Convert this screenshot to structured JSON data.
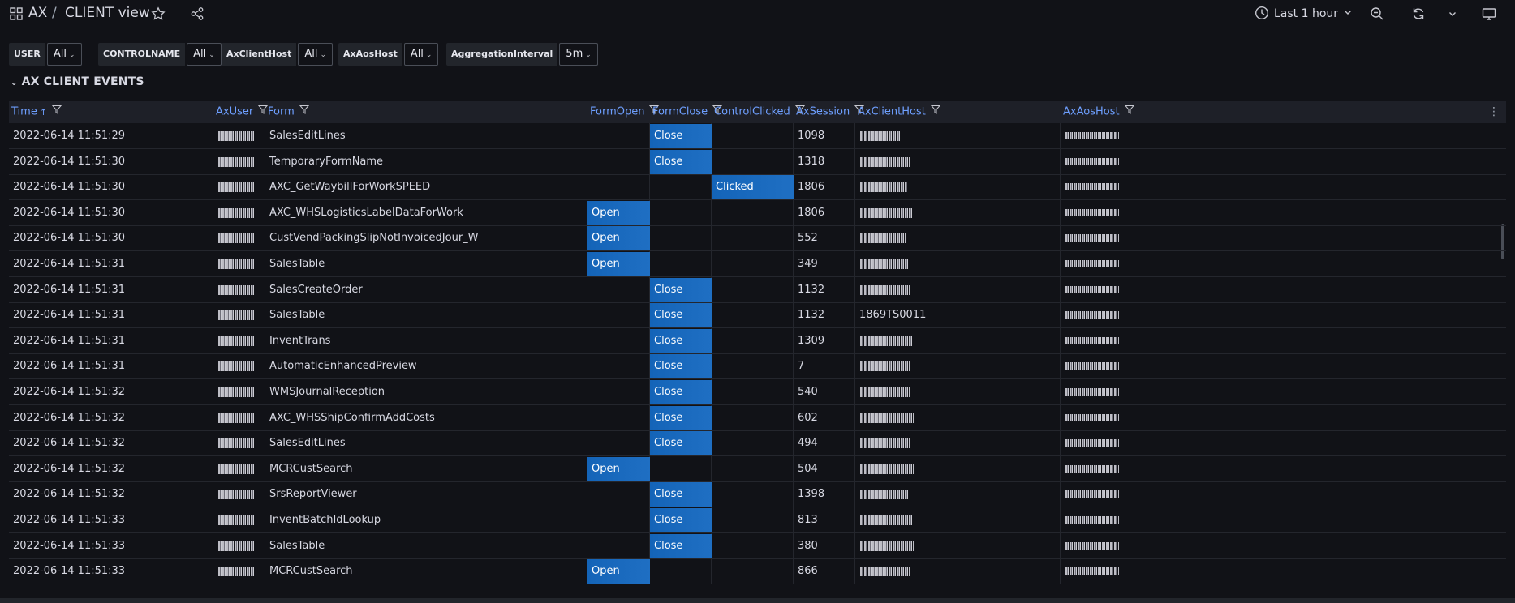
{
  "breadcrumb": {
    "folder": "AX",
    "separator": "/",
    "title": "CLIENT view"
  },
  "toolbar": {
    "time_range": "Last 1 hour"
  },
  "variables": [
    {
      "label": "USER",
      "value": "All"
    },
    {
      "label": "CONTROLNAME",
      "value": "All"
    },
    {
      "label": "AxClientHost",
      "value": "All"
    },
    {
      "label": "AxAosHost",
      "value": "All"
    },
    {
      "label": "AggregationInterval",
      "value": "5m"
    }
  ],
  "panel": {
    "title": "AX CLIENT EVENTS"
  },
  "table": {
    "columns": [
      "Time",
      "AxUser",
      "Form",
      "FormOpen",
      "FormClose",
      "ControlClicked",
      "AxSession",
      "AxClientHost",
      "AxAosHost"
    ],
    "sort_indicator": "↑",
    "rows": [
      {
        "time": "2022-06-14 11:51:29",
        "form": "SalesEditLines",
        "open": "",
        "close": "Close",
        "clicked": "",
        "session": "1098",
        "clienthost": ""
      },
      {
        "time": "2022-06-14 11:51:30",
        "form": "TemporaryFormName",
        "open": "",
        "close": "Close",
        "clicked": "",
        "session": "1318",
        "clienthost": ""
      },
      {
        "time": "2022-06-14 11:51:30",
        "form": "AXC_GetWaybillForWorkSPEED",
        "open": "",
        "close": "",
        "clicked": "Clicked",
        "session": "1806",
        "clienthost": ""
      },
      {
        "time": "2022-06-14 11:51:30",
        "form": "AXC_WHSLogisticsLabelDataForWork",
        "open": "Open",
        "close": "",
        "clicked": "",
        "session": "1806",
        "clienthost": ""
      },
      {
        "time": "2022-06-14 11:51:30",
        "form": "CustVendPackingSlipNotInvoicedJour_W",
        "open": "Open",
        "close": "",
        "clicked": "",
        "session": "552",
        "clienthost": ""
      },
      {
        "time": "2022-06-14 11:51:31",
        "form": "SalesTable",
        "open": "Open",
        "close": "",
        "clicked": "",
        "session": "349",
        "clienthost": ""
      },
      {
        "time": "2022-06-14 11:51:31",
        "form": "SalesCreateOrder",
        "open": "",
        "close": "Close",
        "clicked": "",
        "session": "1132",
        "clienthost": ""
      },
      {
        "time": "2022-06-14 11:51:31",
        "form": "SalesTable",
        "open": "",
        "close": "Close",
        "clicked": "",
        "session": "1132",
        "clienthost": "1869TS0011"
      },
      {
        "time": "2022-06-14 11:51:31",
        "form": "InventTrans",
        "open": "",
        "close": "Close",
        "clicked": "",
        "session": "1309",
        "clienthost": ""
      },
      {
        "time": "2022-06-14 11:51:31",
        "form": "AutomaticEnhancedPreview",
        "open": "",
        "close": "Close",
        "clicked": "",
        "session": "7",
        "clienthost": ""
      },
      {
        "time": "2022-06-14 11:51:32",
        "form": "WMSJournalReception",
        "open": "",
        "close": "Close",
        "clicked": "",
        "session": "540",
        "clienthost": ""
      },
      {
        "time": "2022-06-14 11:51:32",
        "form": "AXC_WHSShipConfirmAddCosts",
        "open": "",
        "close": "Close",
        "clicked": "",
        "session": "602",
        "clienthost": ""
      },
      {
        "time": "2022-06-14 11:51:32",
        "form": "SalesEditLines",
        "open": "",
        "close": "Close",
        "clicked": "",
        "session": "494",
        "clienthost": ""
      },
      {
        "time": "2022-06-14 11:51:32",
        "form": "MCRCustSearch",
        "open": "Open",
        "close": "",
        "clicked": "",
        "session": "504",
        "clienthost": ""
      },
      {
        "time": "2022-06-14 11:51:32",
        "form": "SrsReportViewer",
        "open": "",
        "close": "Close",
        "clicked": "",
        "session": "1398",
        "clienthost": ""
      },
      {
        "time": "2022-06-14 11:51:33",
        "form": "InventBatchIdLookup",
        "open": "",
        "close": "Close",
        "clicked": "",
        "session": "813",
        "clienthost": ""
      },
      {
        "time": "2022-06-14 11:51:33",
        "form": "SalesTable",
        "open": "",
        "close": "Close",
        "clicked": "",
        "session": "380",
        "clienthost": ""
      },
      {
        "time": "2022-06-14 11:51:33",
        "form": "MCRCustSearch",
        "open": "Open",
        "close": "",
        "clicked": "",
        "session": "866",
        "clienthost": ""
      }
    ]
  },
  "colors": {
    "accent": "#6e9fff",
    "cell_fill": "#1f6fc3",
    "background": "#111217"
  }
}
